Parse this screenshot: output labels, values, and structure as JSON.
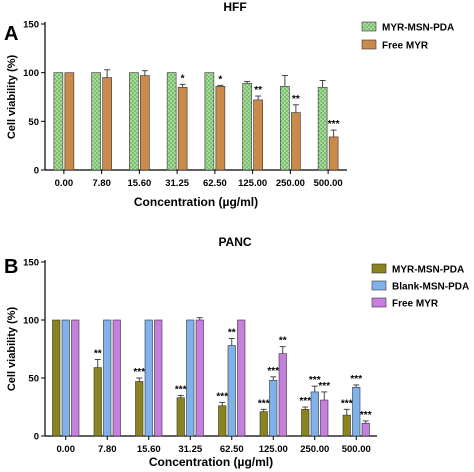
{
  "chart_data": [
    {
      "type": "bar",
      "panel_label": "A",
      "title": "HFF",
      "xlabel": "Concentration (µg/ml)",
      "ylabel": "Cell viability (%)",
      "ylim": [
        0,
        150
      ],
      "yticks": [
        "0",
        "50",
        "100",
        "150"
      ],
      "categories": [
        "0.00",
        "7.80",
        "15.60",
        "31.25",
        "62.50",
        "125.00",
        "250.00",
        "500.00"
      ],
      "legend_position": "top-right",
      "series": [
        {
          "name": "MYR-MSN-PDA",
          "color": "#a6d89a",
          "pattern": "checker",
          "values": [
            100,
            100,
            100,
            100,
            100,
            89,
            86,
            85
          ],
          "errors": [
            0,
            0,
            0,
            0,
            0,
            2,
            11,
            7
          ],
          "annotations": [
            "",
            "",
            "",
            "",
            "",
            "",
            "",
            ""
          ]
        },
        {
          "name": "Free MYR",
          "color": "#c98a4b",
          "pattern": "solid",
          "values": [
            100,
            95,
            97,
            85,
            86,
            72,
            59,
            34
          ],
          "errors": [
            0,
            8,
            5,
            3,
            1,
            4,
            8,
            7
          ],
          "annotations": [
            "",
            "",
            "",
            "*",
            "*",
            "**",
            "**",
            "***"
          ]
        }
      ]
    },
    {
      "type": "bar",
      "panel_label": "B",
      "title": "PANC",
      "xlabel": "Concentration (µg/ml)",
      "ylabel": "Cell viability (%)",
      "ylim": [
        0,
        150
      ],
      "yticks": [
        "0",
        "50",
        "100",
        "150"
      ],
      "categories": [
        "0.00",
        "7.80",
        "15.60",
        "31.25",
        "62.50",
        "125.00",
        "250.00",
        "500.00"
      ],
      "legend_position": "top-right",
      "series": [
        {
          "name": "MYR-MSN-PDA",
          "color": "#8a8420",
          "pattern": "solid",
          "values": [
            100,
            59,
            47,
            33,
            26,
            21,
            23,
            18
          ],
          "errors": [
            0,
            7,
            3,
            2,
            3,
            2,
            2,
            5
          ],
          "annotations": [
            "",
            "**",
            "***",
            "***",
            "***",
            "***",
            "***",
            "***"
          ]
        },
        {
          "name": "Blank-MSN-PDA",
          "color": "#7fb2ea",
          "pattern": "solid",
          "values": [
            100,
            100,
            100,
            100,
            78,
            48,
            38,
            42
          ],
          "errors": [
            0,
            0,
            0,
            0,
            6,
            3,
            5,
            2
          ],
          "annotations": [
            "",
            "",
            "",
            "",
            "**",
            "***",
            "***",
            "***"
          ]
        },
        {
          "name": "Free MYR",
          "color": "#c77fdd",
          "pattern": "solid",
          "values": [
            100,
            100,
            100,
            100,
            100,
            71,
            31,
            11
          ],
          "errors": [
            0,
            0,
            0,
            2,
            0,
            6,
            7,
            2
          ],
          "annotations": [
            "",
            "",
            "",
            "",
            "",
            "**",
            "***",
            "***"
          ]
        }
      ]
    }
  ]
}
